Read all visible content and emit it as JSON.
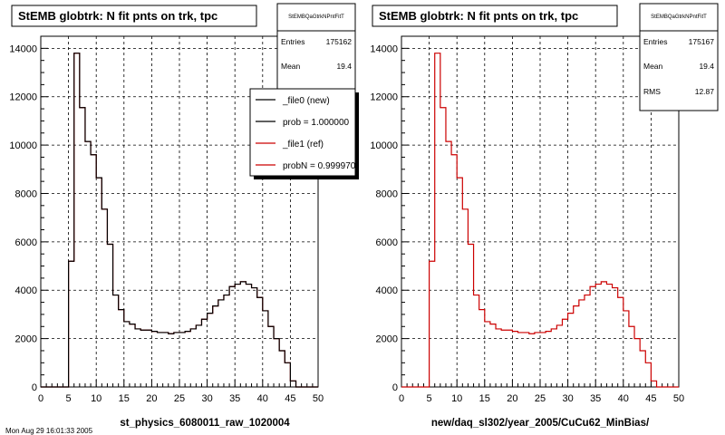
{
  "footer_text": "Mon Aug 29 16:01:33 2005",
  "chart_data": [
    {
      "type": "histogram",
      "title": "StEMB globtrk: N fit pnts on trk, tpc",
      "xlabel": "st_physics_6080011_raw_1020004",
      "xlim": [
        0,
        50
      ],
      "ylim": [
        0,
        14500
      ],
      "xticks": [
        0,
        5,
        10,
        15,
        20,
        25,
        30,
        35,
        40,
        45,
        50
      ],
      "yticks": [
        0,
        2000,
        4000,
        6000,
        8000,
        10000,
        12000,
        14000
      ],
      "grid": true,
      "bin_width": 1,
      "bin_start": 0,
      "values": [
        0,
        0,
        0,
        0,
        0,
        5200,
        13800,
        11550,
        10150,
        9600,
        8650,
        7350,
        5900,
        3800,
        3200,
        2700,
        2600,
        2400,
        2350,
        2350,
        2300,
        2250,
        2250,
        2200,
        2250,
        2250,
        2300,
        2400,
        2550,
        2800,
        3050,
        3350,
        3600,
        3800,
        4150,
        4250,
        4350,
        4250,
        4100,
        3700,
        3150,
        2500,
        2000,
        1500,
        1000,
        250,
        0,
        0,
        0,
        0
      ],
      "series": [
        {
          "name": "_file0 (new)",
          "color": "#000000"
        },
        {
          "name": "_file1 (ref)",
          "color": "#cc0000"
        }
      ],
      "legend": {
        "position": "top-right",
        "entries": [
          {
            "label": "_file0 (new)",
            "color": "#000000"
          },
          {
            "label": "prob = 1.000000",
            "color": "#000000"
          },
          {
            "label": "_file1 (ref)",
            "color": "#cc0000"
          },
          {
            "label": "probN = 0.999970",
            "color": "#cc0000"
          }
        ]
      },
      "stats": {
        "name": "StEMBQaGtrkNPntFitT",
        "rows": [
          {
            "label": "Entries",
            "value": "175162"
          },
          {
            "label": "Mean",
            "value": "19.4"
          }
        ]
      }
    },
    {
      "type": "histogram",
      "title": "StEMB globtrk: N fit pnts on trk, tpc",
      "xlabel": "new/daq_sl302/year_2005/CuCu62_MinBias/",
      "xlim": [
        0,
        50
      ],
      "ylim": [
        0,
        14500
      ],
      "xticks": [
        0,
        5,
        10,
        15,
        20,
        25,
        30,
        35,
        40,
        45,
        50
      ],
      "yticks": [
        0,
        2000,
        4000,
        6000,
        8000,
        10000,
        12000,
        14000
      ],
      "grid": true,
      "bin_width": 1,
      "bin_start": 0,
      "values": [
        0,
        0,
        0,
        0,
        0,
        5200,
        13800,
        11550,
        10150,
        9600,
        8650,
        7350,
        5900,
        3800,
        3200,
        2700,
        2600,
        2400,
        2350,
        2350,
        2300,
        2250,
        2250,
        2200,
        2250,
        2250,
        2300,
        2400,
        2550,
        2800,
        3050,
        3350,
        3600,
        3800,
        4150,
        4250,
        4350,
        4250,
        4100,
        3700,
        3150,
        2500,
        2000,
        1500,
        1000,
        250,
        0,
        0,
        0,
        0
      ],
      "series": [
        {
          "name": "",
          "color": "#cc0000"
        }
      ],
      "stats": {
        "name": "StEMBQaGtrkNPntFitT",
        "rows": [
          {
            "label": "Entries",
            "value": "175167"
          },
          {
            "label": "Mean",
            "value": "19.4"
          },
          {
            "label": "RMS",
            "value": "12.87"
          }
        ]
      }
    }
  ]
}
